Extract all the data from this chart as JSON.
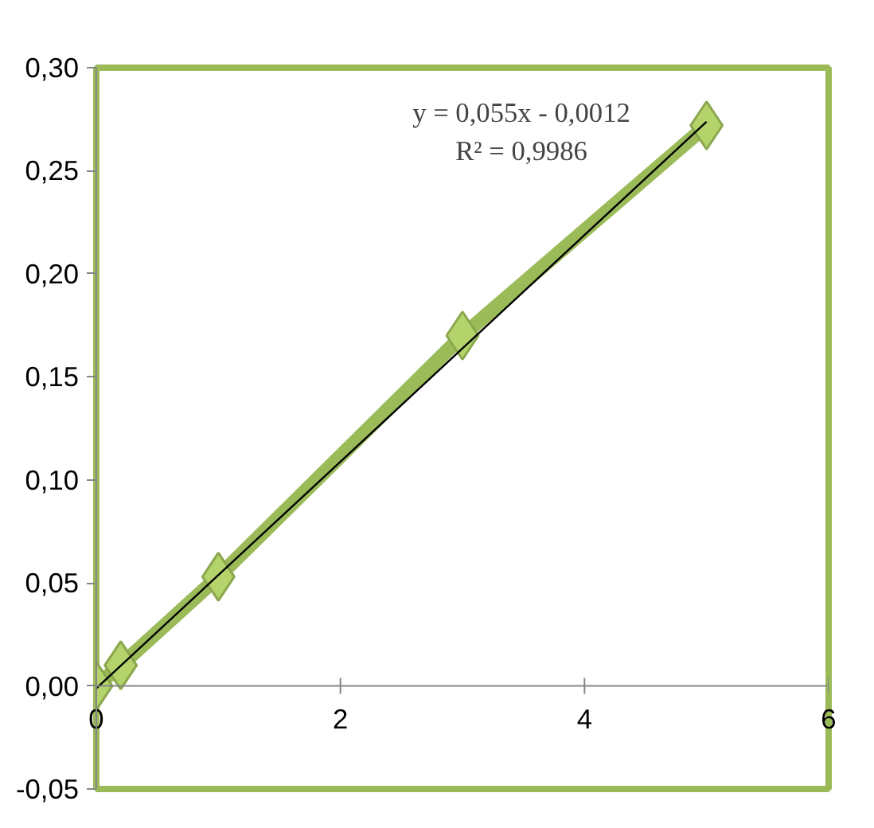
{
  "chart_data": {
    "type": "scatter",
    "xlim": [
      0,
      6
    ],
    "xticks": [
      0,
      2,
      4,
      6
    ],
    "ylim": [
      -0.05,
      0.3
    ],
    "yticks": [
      {
        "value": -0.05,
        "label": "-0,05"
      },
      {
        "value": 0,
        "label": "0,00"
      },
      {
        "value": 0.05,
        "label": "0,05"
      },
      {
        "value": 0.1,
        "label": "0,10"
      },
      {
        "value": 0.15,
        "label": "0,15"
      },
      {
        "value": 0.2,
        "label": "0,20"
      },
      {
        "value": 0.25,
        "label": "0,25"
      },
      {
        "value": 0.3,
        "label": "0,30"
      }
    ],
    "grid": false,
    "annotations": [
      "y = 0,055x - 0,0012",
      "R² = 0,9986"
    ],
    "series": [
      {
        "type": "line",
        "marker": "diamond",
        "color": "#9bbb59",
        "x": [
          0,
          0.2,
          1,
          3,
          5
        ],
        "values": [
          0,
          0.01,
          0.053,
          0.17,
          0.272
        ]
      },
      {
        "type": "line",
        "marker": "none",
        "color": "#000000",
        "x": [
          0,
          5
        ],
        "values": [
          -0.0012,
          0.2738
        ]
      }
    ]
  }
}
